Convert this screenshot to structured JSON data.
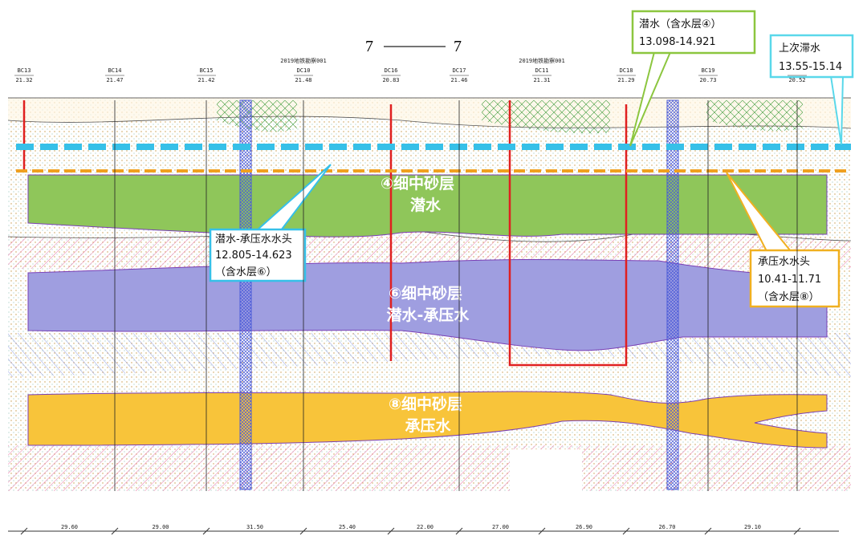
{
  "title": {
    "left": "7",
    "right": "7"
  },
  "survey_labels": [
    "2019地铁勘察001",
    "2019地铁勘察001"
  ],
  "boreholes": [
    {
      "name": "BC13",
      "elevation": "21.32"
    },
    {
      "name": "BC14",
      "elevation": "21.47"
    },
    {
      "name": "BC15",
      "elevation": "21.42"
    },
    {
      "name": "DC10",
      "elevation": "21.48"
    },
    {
      "name": "DC16",
      "elevation": "20.83"
    },
    {
      "name": "DC17",
      "elevation": "21.46"
    },
    {
      "name": "DC11",
      "elevation": "21.31"
    },
    {
      "name": "DC18",
      "elevation": "21.29"
    },
    {
      "name": "BC19",
      "elevation": "20.73"
    },
    {
      "name": "",
      "elevation": "20.52"
    }
  ],
  "layers": [
    {
      "name": "④细中砂层",
      "water": "潜水"
    },
    {
      "name": "⑥细中砂层",
      "water": "潜水-承压水"
    },
    {
      "name": "⑧细中砂层",
      "water": "承压水"
    }
  ],
  "callouts": [
    {
      "title": "潜水（含水层④）",
      "range": "13.098-14.921"
    },
    {
      "title": "上次滞水",
      "range": "13.55-15.14"
    },
    {
      "title": "潜水-承压水水头",
      "range": "12.805-14.623",
      "note": "（含水层⑥）"
    },
    {
      "title": "承压水水头",
      "range": "10.41-11.71",
      "note": "（含水层⑧）"
    }
  ],
  "distances": [
    "29.60",
    "29.00",
    "31.50",
    "25.40",
    "22.00",
    "27.00",
    "26.90",
    "26.70",
    "29.10"
  ]
}
